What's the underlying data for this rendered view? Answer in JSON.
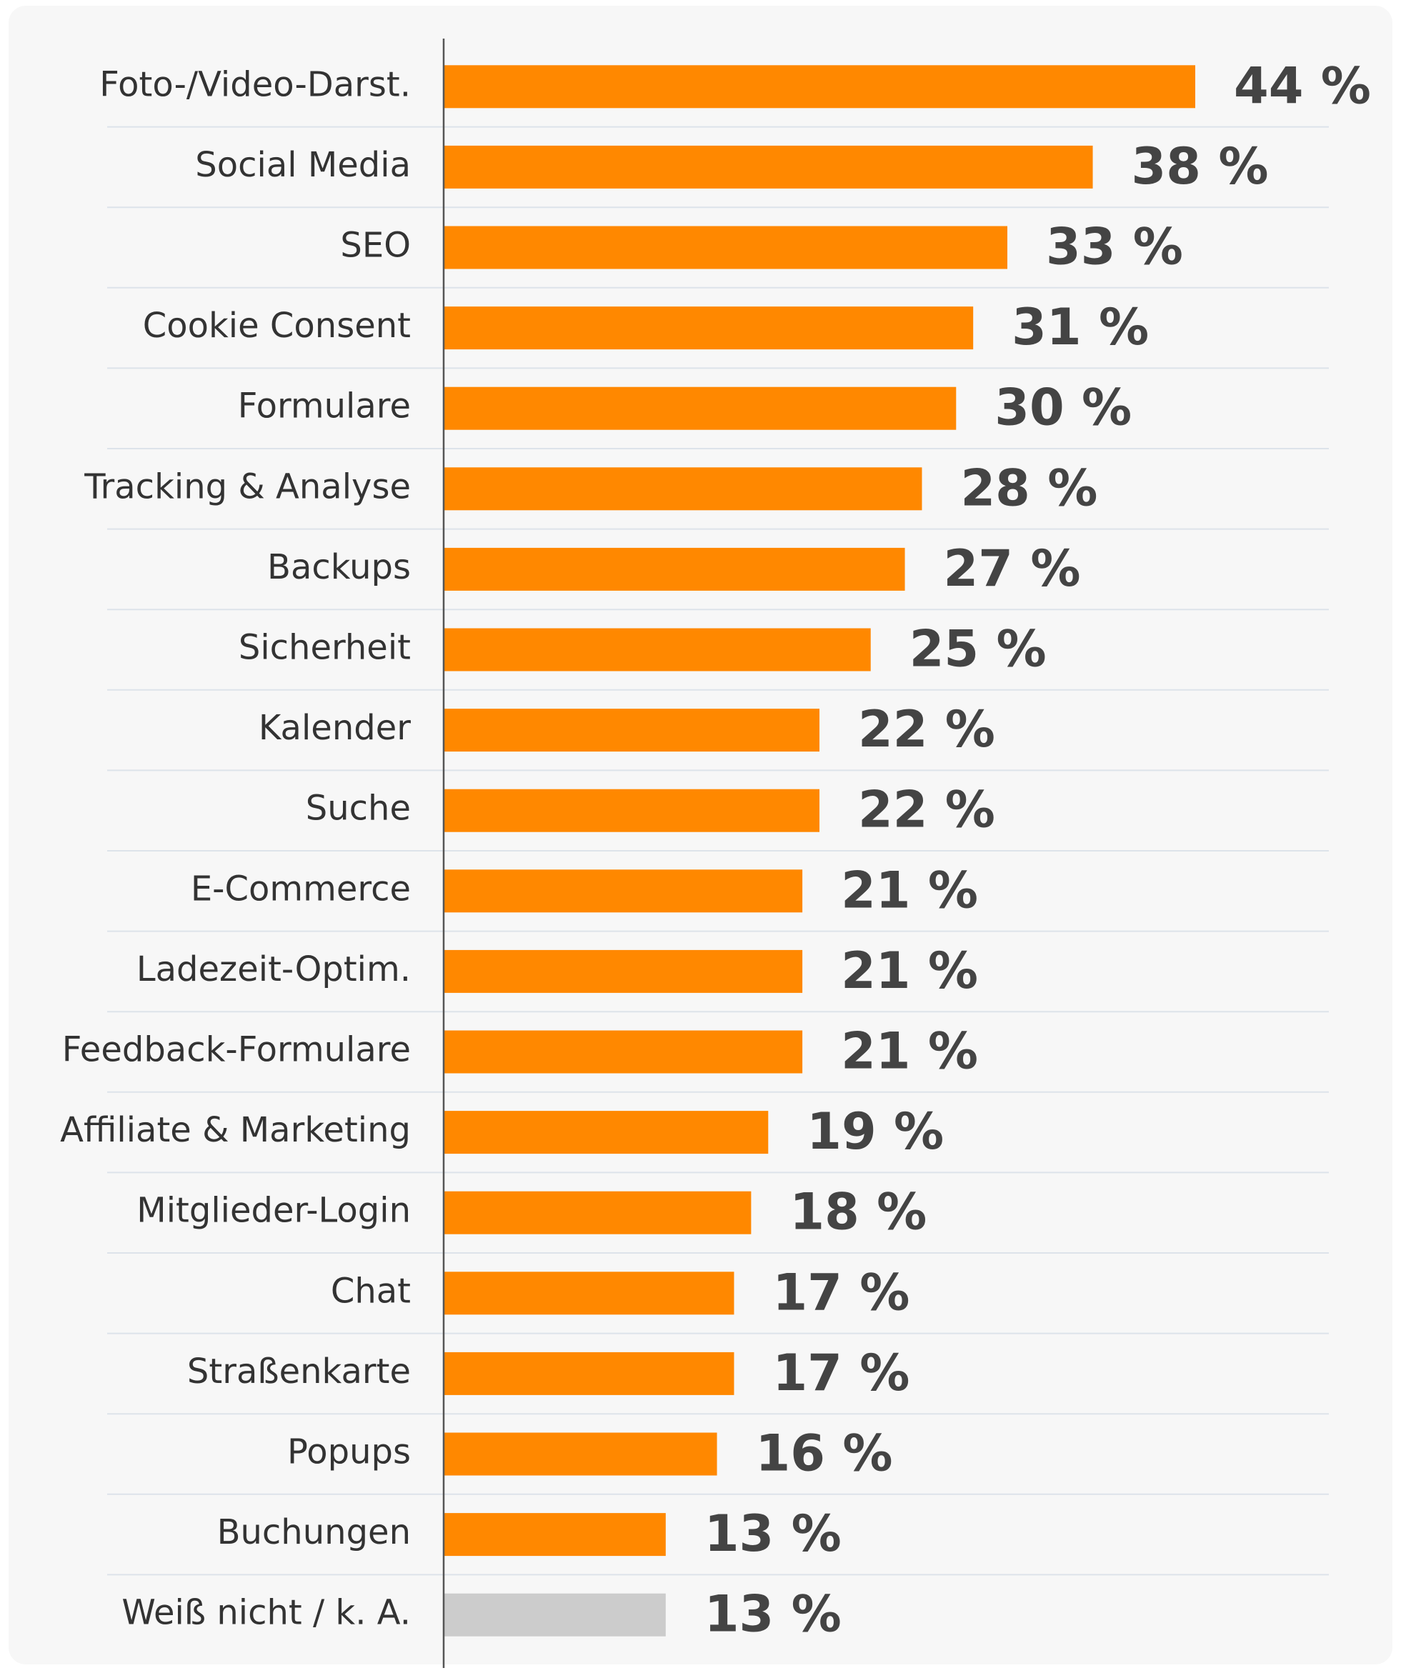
{
  "chart_data": {
    "type": "bar",
    "orientation": "horizontal",
    "categories": [
      "Foto-/Video-Darst.",
      "Social Media",
      "SEO",
      "Cookie Consent",
      "Formulare",
      "Tracking & Analyse",
      "Backups",
      "Sicherheit",
      "Kalender",
      "Suche",
      "E-Commerce",
      "Ladezeit-Optim.",
      "Feedback-Formulare",
      "Affiliate & Marketing",
      "Mitglieder-Login",
      "Chat",
      "Straßenkarte",
      "Popups",
      "Buchungen",
      "Weiß nicht / k. A."
    ],
    "values": [
      44,
      38,
      33,
      31,
      30,
      28,
      27,
      25,
      22,
      22,
      21,
      21,
      21,
      19,
      18,
      17,
      17,
      16,
      13,
      13
    ],
    "value_labels": [
      "44 %",
      "38 %",
      "33 %",
      "31 %",
      "30 %",
      "28 %",
      "27 %",
      "25 %",
      "22 %",
      "22 %",
      "21 %",
      "21 %",
      "21 %",
      "19 %",
      "18 %",
      "17 %",
      "17 %",
      "16 %",
      "13 %",
      "13 %"
    ],
    "colors": [
      "#ff8800",
      "#ff8800",
      "#ff8800",
      "#ff8800",
      "#ff8800",
      "#ff8800",
      "#ff8800",
      "#ff8800",
      "#ff8800",
      "#ff8800",
      "#ff8800",
      "#ff8800",
      "#ff8800",
      "#ff8800",
      "#ff8800",
      "#ff8800",
      "#ff8800",
      "#ff8800",
      "#ff8800",
      "#cccccc"
    ]
  }
}
